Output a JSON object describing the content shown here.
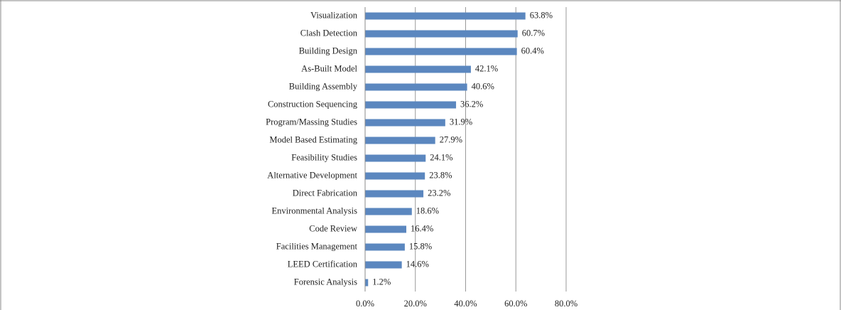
{
  "chart_data": {
    "type": "barh",
    "categories": [
      "Visualization",
      "Clash Detection",
      "Building Design",
      "As-Built Model",
      "Building Assembly",
      "Construction Sequencing",
      "Program/Massing Studies",
      "Model Based Estimating",
      "Feasibility Studies",
      "Alternative Development",
      "Direct Fabrication",
      "Environmental Analysis",
      "Code Review",
      "Facilities Management",
      "LEED Certification",
      "Forensic Analysis"
    ],
    "values": [
      63.8,
      60.7,
      60.4,
      42.1,
      40.6,
      36.2,
      31.9,
      27.9,
      24.1,
      23.8,
      23.2,
      18.6,
      16.4,
      15.8,
      14.6,
      1.2
    ],
    "value_labels": [
      "63.8%",
      "60.7%",
      "60.4%",
      "42.1%",
      "40.6%",
      "36.2%",
      "31.9%",
      "27.9%",
      "24.1%",
      "23.8%",
      "23.2%",
      "18.6%",
      "16.4%",
      "15.8%",
      "14.6%",
      "1.2%"
    ],
    "color": "#5b87bf",
    "xlim": [
      0,
      80
    ],
    "xticks": [
      {
        "value": 0,
        "label": "0.0%"
      },
      {
        "value": 20,
        "label": "20.0%"
      },
      {
        "value": 40,
        "label": "40.0%"
      },
      {
        "value": 60,
        "label": "60.0%"
      },
      {
        "value": 80,
        "label": "80.0%"
      }
    ],
    "grid": true
  }
}
